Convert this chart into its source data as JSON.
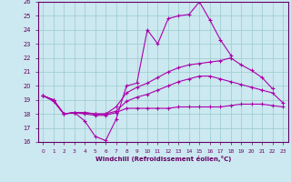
{
  "xlabel": "Windchill (Refroidissement éolien,°C)",
  "xlim": [
    -0.5,
    23.5
  ],
  "ylim": [
    16,
    26
  ],
  "xticks": [
    0,
    1,
    2,
    3,
    4,
    5,
    6,
    7,
    8,
    9,
    10,
    11,
    12,
    13,
    14,
    15,
    16,
    17,
    18,
    19,
    20,
    21,
    22,
    23
  ],
  "yticks": [
    16,
    17,
    18,
    19,
    20,
    21,
    22,
    23,
    24,
    25,
    26
  ],
  "background_color": "#cce8f0",
  "grid_color": "#99cccc",
  "line_color": "#aa00aa",
  "lines": [
    {
      "x": [
        0,
        1,
        2,
        3,
        4,
        5,
        6,
        7,
        8,
        9,
        10,
        11,
        12,
        13,
        14,
        15,
        16,
        17,
        18,
        19,
        20,
        21,
        22,
        23
      ],
      "y": [
        19.3,
        19.0,
        18.0,
        18.1,
        17.5,
        16.4,
        16.1,
        17.6,
        20.0,
        20.2,
        24.0,
        23.0,
        24.8,
        25.0,
        25.1,
        26.0,
        24.7,
        23.3,
        22.2,
        null,
        null,
        null,
        null,
        null
      ]
    },
    {
      "x": [
        0,
        1,
        2,
        3,
        4,
        5,
        6,
        7,
        8,
        9,
        10,
        11,
        12,
        13,
        14,
        15,
        16,
        17,
        18,
        19,
        20,
        21,
        22,
        23
      ],
      "y": [
        19.3,
        19.0,
        18.0,
        18.1,
        18.1,
        18.0,
        18.0,
        18.5,
        19.5,
        19.9,
        20.2,
        20.6,
        21.0,
        21.3,
        21.5,
        21.6,
        21.7,
        21.8,
        22.0,
        21.5,
        21.1,
        20.6,
        19.8,
        null
      ]
    },
    {
      "x": [
        0,
        1,
        2,
        3,
        4,
        5,
        6,
        7,
        8,
        9,
        10,
        11,
        12,
        13,
        14,
        15,
        16,
        17,
        18,
        19,
        20,
        21,
        22,
        23
      ],
      "y": [
        19.3,
        18.9,
        18.0,
        18.1,
        18.0,
        17.9,
        17.9,
        18.1,
        18.4,
        18.4,
        18.4,
        18.4,
        18.4,
        18.5,
        18.5,
        18.5,
        18.5,
        18.5,
        18.6,
        18.7,
        18.7,
        18.7,
        18.6,
        18.5
      ]
    },
    {
      "x": [
        0,
        1,
        2,
        3,
        4,
        5,
        6,
        7,
        8,
        9,
        10,
        11,
        12,
        13,
        14,
        15,
        16,
        17,
        18,
        19,
        20,
        21,
        22,
        23
      ],
      "y": [
        19.3,
        19.0,
        18.0,
        18.1,
        18.1,
        18.0,
        18.0,
        18.2,
        18.9,
        19.2,
        19.4,
        19.7,
        20.0,
        20.3,
        20.5,
        20.7,
        20.7,
        20.5,
        20.3,
        20.1,
        19.9,
        19.7,
        19.5,
        18.8
      ]
    }
  ]
}
